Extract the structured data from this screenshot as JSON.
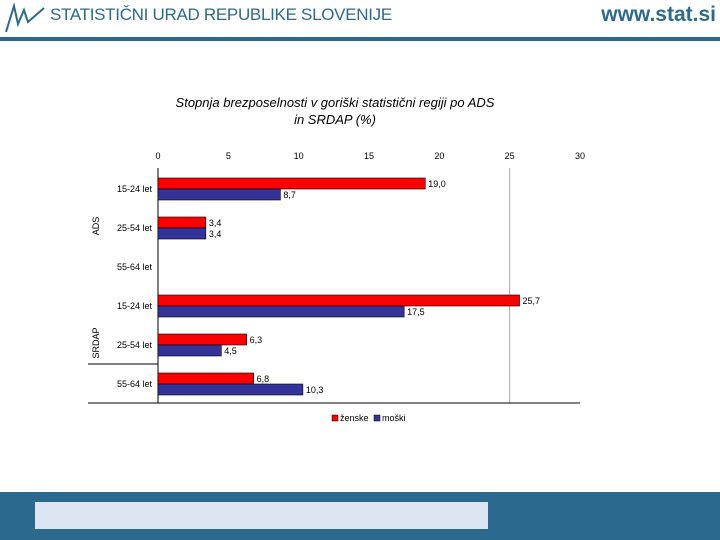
{
  "header": {
    "title": "STATISTIČNI URAD REPUBLIKE SLOVENIJE",
    "url": "www.stat.si"
  },
  "colors": {
    "brand": "#2b6a8e",
    "zenske": "#ff0000",
    "moski": "#333399",
    "footer_box": "#dce6f2"
  },
  "chart_data": {
    "type": "bar",
    "orientation": "horizontal",
    "title_line1": "Stopnja brezposelnosti v goriški statistični regiji po ADS",
    "title_line2": "in SRDAP (%)",
    "xlim": [
      0,
      30
    ],
    "xticks": [
      "0",
      "5",
      "10",
      "15",
      "20",
      "25",
      "30"
    ],
    "gridlines": [
      25
    ],
    "groups": [
      {
        "name": "ADS",
        "categories": [
          "15-24 let",
          "25-54 let",
          "55-64 let"
        ]
      },
      {
        "name": "SRDAP",
        "categories": [
          "15-24 let",
          "25-54 let",
          "55-64 let"
        ]
      }
    ],
    "series": [
      {
        "name": "ženske",
        "color": "#ff0000",
        "values": [
          19.0,
          3.4,
          null,
          25.7,
          6.3,
          6.8
        ],
        "labels": [
          "19,0",
          "3,4",
          "",
          "25,7",
          "6,3",
          "6,8"
        ]
      },
      {
        "name": "moški",
        "color": "#333399",
        "values": [
          8.7,
          3.4,
          null,
          17.5,
          4.5,
          10.3
        ],
        "labels": [
          "8,7",
          "3,4",
          "",
          "17,5",
          "4,5",
          "10,3"
        ]
      }
    ],
    "legend": "bottom"
  }
}
